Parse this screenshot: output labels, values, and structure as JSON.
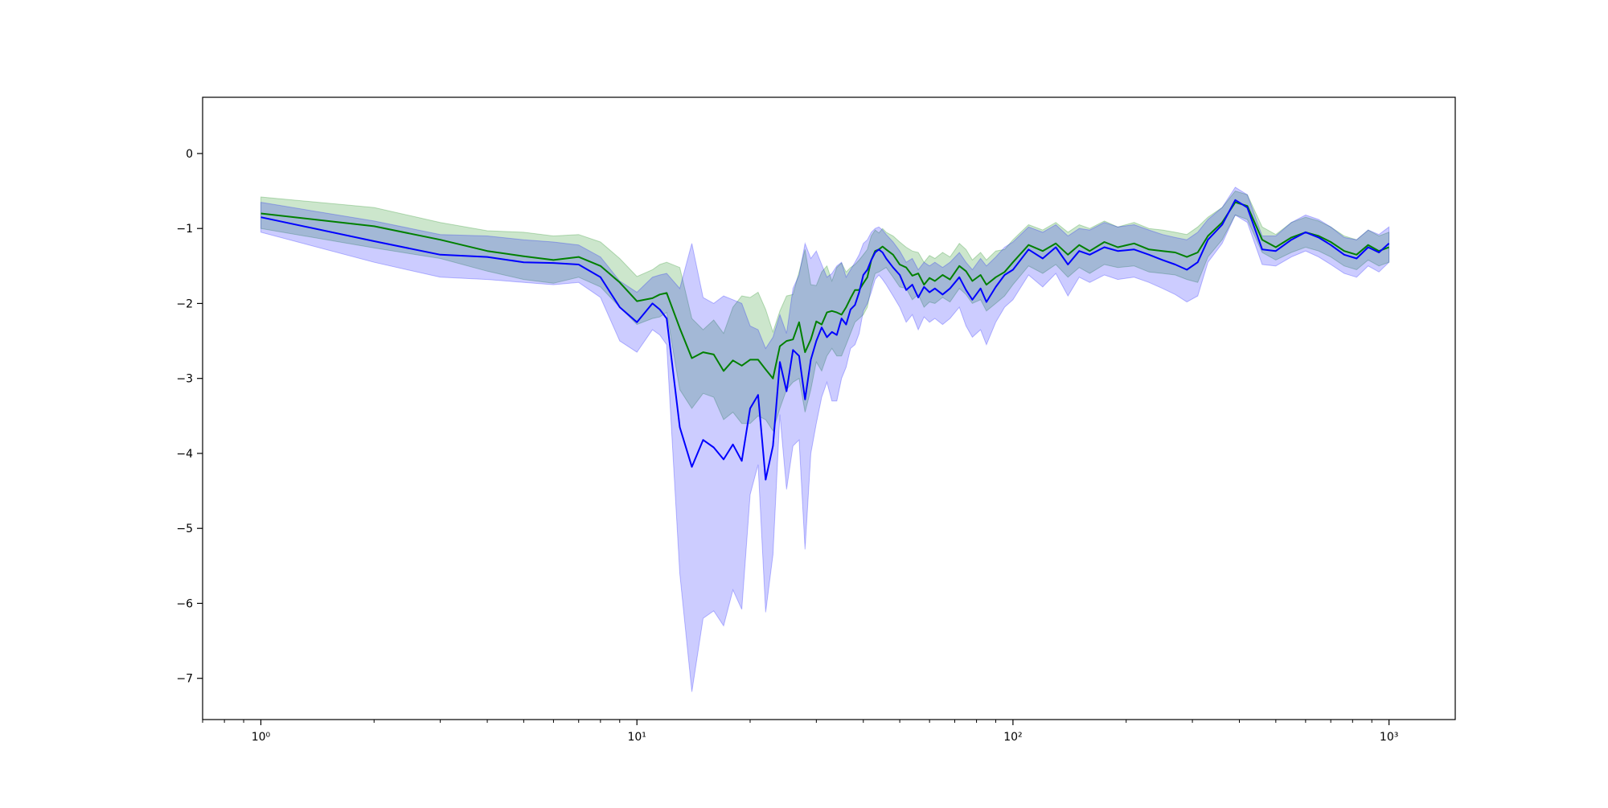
{
  "chart_data": {
    "type": "line",
    "title": "",
    "xlabel": "",
    "ylabel": "",
    "x_scale": "log",
    "xlim": [
      0.7,
      1500
    ],
    "ylim": [
      -7.55,
      0.75
    ],
    "x_ticks": [
      {
        "value": 1,
        "label": "10⁰"
      },
      {
        "value": 10,
        "label": "10¹"
      },
      {
        "value": 100,
        "label": "10²"
      },
      {
        "value": 1000,
        "label": "10³"
      }
    ],
    "y_ticks": [
      {
        "value": 0,
        "label": "0"
      },
      {
        "value": -1,
        "label": "−1"
      },
      {
        "value": -2,
        "label": "−2"
      },
      {
        "value": -3,
        "label": "−3"
      },
      {
        "value": -4,
        "label": "−4"
      },
      {
        "value": -5,
        "label": "−5"
      },
      {
        "value": -6,
        "label": "−6"
      },
      {
        "value": -7,
        "label": "−7"
      }
    ],
    "grid": false,
    "legend": "none",
    "series": [
      {
        "color": "#008000",
        "band_color": "#008000",
        "band_opacity": 0.2,
        "points": [
          [
            1,
            -0.8,
            -0.58,
            -1.0
          ],
          [
            2,
            -0.97,
            -0.72,
            -1.26
          ],
          [
            3,
            -1.15,
            -0.92,
            -1.4
          ],
          [
            4,
            -1.3,
            -1.03,
            -1.57
          ],
          [
            5,
            -1.37,
            -1.05,
            -1.68
          ],
          [
            6,
            -1.42,
            -1.1,
            -1.73
          ],
          [
            7,
            -1.38,
            -1.08,
            -1.65
          ],
          [
            8,
            -1.5,
            -1.18,
            -1.78
          ],
          [
            9,
            -1.72,
            -1.4,
            -2.05
          ],
          [
            10,
            -1.97,
            -1.64,
            -2.28
          ],
          [
            11,
            -1.93,
            -1.55,
            -2.2
          ],
          [
            11.5,
            -1.88,
            -1.48,
            -2.18
          ],
          [
            12,
            -1.86,
            -1.45,
            -2.12
          ],
          [
            13,
            -2.33,
            -1.52,
            -3.15
          ],
          [
            14,
            -2.73,
            -2.2,
            -3.4
          ],
          [
            15,
            -2.65,
            -2.35,
            -3.2
          ],
          [
            16,
            -2.68,
            -2.22,
            -3.25
          ],
          [
            17,
            -2.9,
            -2.4,
            -3.55
          ],
          [
            18,
            -2.76,
            -2.05,
            -3.45
          ],
          [
            19,
            -2.83,
            -1.9,
            -3.6
          ],
          [
            20,
            -2.75,
            -1.92,
            -3.6
          ],
          [
            21,
            -2.75,
            -1.85,
            -3.5
          ],
          [
            22,
            -2.88,
            -2.08,
            -3.55
          ],
          [
            23,
            -3.0,
            -2.38,
            -3.7
          ],
          [
            24,
            -2.57,
            -2.1,
            -3.4
          ],
          [
            25,
            -2.5,
            -1.9,
            -3.15
          ],
          [
            26,
            -2.48,
            -1.88,
            -3.05
          ],
          [
            27,
            -2.25,
            -1.58,
            -3.0
          ],
          [
            28,
            -2.65,
            -1.28,
            -3.45
          ],
          [
            29,
            -2.48,
            -1.75,
            -3.15
          ],
          [
            30,
            -2.24,
            -1.76,
            -2.78
          ],
          [
            31,
            -2.28,
            -1.58,
            -2.9
          ],
          [
            32,
            -2.12,
            -1.5,
            -2.7
          ],
          [
            33,
            -2.1,
            -1.7,
            -2.6
          ],
          [
            34,
            -2.12,
            -1.52,
            -2.7
          ],
          [
            35,
            -2.15,
            -1.46,
            -2.7
          ],
          [
            36,
            -2.05,
            -1.58,
            -2.55
          ],
          [
            37,
            -1.93,
            -1.52,
            -2.4
          ],
          [
            38,
            -1.82,
            -1.48,
            -2.25
          ],
          [
            39,
            -1.82,
            -1.42,
            -2.2
          ],
          [
            40,
            -1.73,
            -1.35,
            -2.15
          ],
          [
            41,
            -1.65,
            -1.28,
            -2.05
          ],
          [
            42,
            -1.42,
            -1.1,
            -1.78
          ],
          [
            43,
            -1.3,
            -1.02,
            -1.6
          ],
          [
            44,
            -1.28,
            -1.06,
            -1.58
          ],
          [
            45,
            -1.24,
            -1.0,
            -1.55
          ],
          [
            46,
            -1.28,
            -1.05,
            -1.52
          ],
          [
            48,
            -1.35,
            -1.1,
            -1.65
          ],
          [
            50,
            -1.48,
            -1.18,
            -1.78
          ],
          [
            52,
            -1.52,
            -1.25,
            -1.8
          ],
          [
            54,
            -1.63,
            -1.3,
            -1.95
          ],
          [
            56,
            -1.6,
            -1.32,
            -1.88
          ],
          [
            58,
            -1.75,
            -1.45,
            -2.05
          ],
          [
            60,
            -1.66,
            -1.36,
            -1.98
          ],
          [
            62,
            -1.7,
            -1.4,
            -2.0
          ],
          [
            65,
            -1.62,
            -1.32,
            -1.92
          ],
          [
            68,
            -1.68,
            -1.38,
            -1.98
          ],
          [
            72,
            -1.5,
            -1.2,
            -1.8
          ],
          [
            75,
            -1.57,
            -1.28,
            -1.88
          ],
          [
            78,
            -1.7,
            -1.42,
            -2.0
          ],
          [
            82,
            -1.62,
            -1.32,
            -1.95
          ],
          [
            85,
            -1.75,
            -1.42,
            -2.1
          ],
          [
            90,
            -1.65,
            -1.3,
            -2.0
          ],
          [
            95,
            -1.58,
            -1.28,
            -1.9
          ],
          [
            100,
            -1.45,
            -1.15,
            -1.75
          ],
          [
            110,
            -1.22,
            -0.95,
            -1.5
          ],
          [
            120,
            -1.3,
            -1.02,
            -1.6
          ],
          [
            130,
            -1.2,
            -0.92,
            -1.48
          ],
          [
            140,
            -1.35,
            -1.05,
            -1.65
          ],
          [
            150,
            -1.22,
            -0.95,
            -1.52
          ],
          [
            160,
            -1.3,
            -1.0,
            -1.6
          ],
          [
            175,
            -1.18,
            -0.9,
            -1.48
          ],
          [
            190,
            -1.25,
            -0.98,
            -1.52
          ],
          [
            210,
            -1.2,
            -0.92,
            -1.5
          ],
          [
            230,
            -1.28,
            -1.0,
            -1.58
          ],
          [
            250,
            -1.3,
            -1.02,
            -1.6
          ],
          [
            270,
            -1.32,
            -1.05,
            -1.62
          ],
          [
            290,
            -1.38,
            -1.08,
            -1.68
          ],
          [
            310,
            -1.32,
            -0.98,
            -1.72
          ],
          [
            330,
            -1.1,
            -0.85,
            -1.38
          ],
          [
            360,
            -0.92,
            -0.72,
            -1.15
          ],
          [
            390,
            -0.65,
            -0.5,
            -0.82
          ],
          [
            420,
            -0.7,
            -0.55,
            -0.88
          ],
          [
            460,
            -1.15,
            -0.98,
            -1.32
          ],
          [
            500,
            -1.25,
            -1.08,
            -1.42
          ],
          [
            550,
            -1.12,
            -0.92,
            -1.32
          ],
          [
            600,
            -1.05,
            -0.85,
            -1.25
          ],
          [
            650,
            -1.1,
            -0.9,
            -1.3
          ],
          [
            700,
            -1.18,
            -0.98,
            -1.38
          ],
          [
            760,
            -1.3,
            -1.1,
            -1.5
          ],
          [
            820,
            -1.35,
            -1.15,
            -1.55
          ],
          [
            880,
            -1.22,
            -1.02,
            -1.42
          ],
          [
            940,
            -1.3,
            -1.1,
            -1.5
          ],
          [
            1000,
            -1.25,
            -1.05,
            -1.45
          ]
        ]
      },
      {
        "color": "#0000ff",
        "band_color": "#0000ff",
        "band_opacity": 0.2,
        "points": [
          [
            1,
            -0.85,
            -0.65,
            -1.05
          ],
          [
            2,
            -1.17,
            -0.9,
            -1.45
          ],
          [
            3,
            -1.35,
            -1.08,
            -1.65
          ],
          [
            4,
            -1.38,
            -1.1,
            -1.68
          ],
          [
            5,
            -1.45,
            -1.15,
            -1.72
          ],
          [
            6,
            -1.46,
            -1.18,
            -1.75
          ],
          [
            7,
            -1.48,
            -1.22,
            -1.72
          ],
          [
            8,
            -1.65,
            -1.38,
            -1.92
          ],
          [
            9,
            -2.05,
            -1.7,
            -2.5
          ],
          [
            10,
            -2.25,
            -1.85,
            -2.65
          ],
          [
            11,
            -2.0,
            -1.65,
            -2.35
          ],
          [
            11.5,
            -2.08,
            -1.62,
            -2.42
          ],
          [
            12,
            -2.2,
            -1.6,
            -2.55
          ],
          [
            13,
            -3.65,
            -1.8,
            -5.6
          ],
          [
            14,
            -4.18,
            -1.2,
            -7.18
          ],
          [
            15,
            -3.82,
            -1.92,
            -6.2
          ],
          [
            16,
            -3.92,
            -2.0,
            -6.1
          ],
          [
            17,
            -4.08,
            -1.9,
            -6.3
          ],
          [
            18,
            -3.88,
            -1.95,
            -5.82
          ],
          [
            19,
            -4.1,
            -2.0,
            -6.08
          ],
          [
            20,
            -3.4,
            -2.3,
            -4.55
          ],
          [
            21,
            -3.22,
            -2.35,
            -4.15
          ],
          [
            22,
            -4.35,
            -2.6,
            -6.12
          ],
          [
            23,
            -3.9,
            -2.45,
            -5.35
          ],
          [
            24,
            -2.78,
            -2.15,
            -3.48
          ],
          [
            25,
            -3.17,
            -2.4,
            -4.48
          ],
          [
            26,
            -2.62,
            -1.8,
            -3.9
          ],
          [
            27,
            -2.7,
            -1.62,
            -3.82
          ],
          [
            28,
            -3.28,
            -1.2,
            -5.28
          ],
          [
            29,
            -2.75,
            -1.4,
            -4.0
          ],
          [
            30,
            -2.5,
            -1.3,
            -3.6
          ],
          [
            31,
            -2.32,
            -1.48,
            -3.25
          ],
          [
            32,
            -2.45,
            -1.65,
            -3.05
          ],
          [
            33,
            -2.38,
            -1.6,
            -3.3
          ],
          [
            34,
            -2.42,
            -1.5,
            -3.3
          ],
          [
            35,
            -2.2,
            -1.45,
            -3.0
          ],
          [
            36,
            -2.28,
            -1.65,
            -2.85
          ],
          [
            37,
            -2.08,
            -1.55,
            -2.6
          ],
          [
            38,
            -2.02,
            -1.45,
            -2.55
          ],
          [
            39,
            -1.85,
            -1.35,
            -2.4
          ],
          [
            40,
            -1.62,
            -1.2,
            -2.1
          ],
          [
            41,
            -1.55,
            -1.15,
            -2.0
          ],
          [
            42,
            -1.42,
            -1.05,
            -1.85
          ],
          [
            43,
            -1.32,
            -1.0,
            -1.68
          ],
          [
            44,
            -1.28,
            -0.98,
            -1.62
          ],
          [
            45,
            -1.32,
            -1.02,
            -1.68
          ],
          [
            46,
            -1.4,
            -1.08,
            -1.75
          ],
          [
            48,
            -1.52,
            -1.18,
            -1.9
          ],
          [
            50,
            -1.62,
            -1.3,
            -2.05
          ],
          [
            52,
            -1.82,
            -1.45,
            -2.25
          ],
          [
            54,
            -1.75,
            -1.4,
            -2.15
          ],
          [
            56,
            -1.92,
            -1.55,
            -2.35
          ],
          [
            58,
            -1.78,
            -1.45,
            -2.18
          ],
          [
            60,
            -1.85,
            -1.5,
            -2.25
          ],
          [
            62,
            -1.8,
            -1.45,
            -2.2
          ],
          [
            65,
            -1.88,
            -1.52,
            -2.28
          ],
          [
            68,
            -1.8,
            -1.45,
            -2.2
          ],
          [
            72,
            -1.65,
            -1.32,
            -2.05
          ],
          [
            75,
            -1.82,
            -1.45,
            -2.3
          ],
          [
            78,
            -1.95,
            -1.55,
            -2.45
          ],
          [
            82,
            -1.8,
            -1.4,
            -2.35
          ],
          [
            85,
            -1.98,
            -1.5,
            -2.55
          ],
          [
            90,
            -1.78,
            -1.38,
            -2.25
          ],
          [
            95,
            -1.62,
            -1.25,
            -2.05
          ],
          [
            100,
            -1.55,
            -1.18,
            -1.95
          ],
          [
            110,
            -1.28,
            -0.98,
            -1.62
          ],
          [
            120,
            -1.4,
            -1.05,
            -1.78
          ],
          [
            130,
            -1.25,
            -0.95,
            -1.6
          ],
          [
            140,
            -1.48,
            -1.1,
            -1.9
          ],
          [
            150,
            -1.3,
            -1.0,
            -1.65
          ],
          [
            160,
            -1.35,
            -1.02,
            -1.72
          ],
          [
            175,
            -1.25,
            -0.92,
            -1.62
          ],
          [
            190,
            -1.3,
            -0.98,
            -1.68
          ],
          [
            210,
            -1.28,
            -0.95,
            -1.65
          ],
          [
            230,
            -1.35,
            -1.02,
            -1.72
          ],
          [
            250,
            -1.42,
            -1.08,
            -1.8
          ],
          [
            270,
            -1.48,
            -1.12,
            -1.88
          ],
          [
            290,
            -1.55,
            -1.15,
            -1.98
          ],
          [
            310,
            -1.45,
            -1.05,
            -1.9
          ],
          [
            330,
            -1.15,
            -0.88,
            -1.45
          ],
          [
            360,
            -0.95,
            -0.72,
            -1.2
          ],
          [
            390,
            -0.62,
            -0.45,
            -0.82
          ],
          [
            420,
            -0.72,
            -0.55,
            -0.92
          ],
          [
            460,
            -1.28,
            -1.1,
            -1.48
          ],
          [
            500,
            -1.3,
            -1.1,
            -1.5
          ],
          [
            550,
            -1.15,
            -0.92,
            -1.38
          ],
          [
            600,
            -1.05,
            -0.82,
            -1.3
          ],
          [
            650,
            -1.12,
            -0.88,
            -1.38
          ],
          [
            700,
            -1.22,
            -0.98,
            -1.48
          ],
          [
            760,
            -1.35,
            -1.12,
            -1.6
          ],
          [
            820,
            -1.4,
            -1.15,
            -1.65
          ],
          [
            880,
            -1.25,
            -1.02,
            -1.5
          ],
          [
            940,
            -1.32,
            -1.08,
            -1.58
          ],
          [
            1000,
            -1.2,
            -0.98,
            -1.45
          ]
        ]
      }
    ]
  }
}
